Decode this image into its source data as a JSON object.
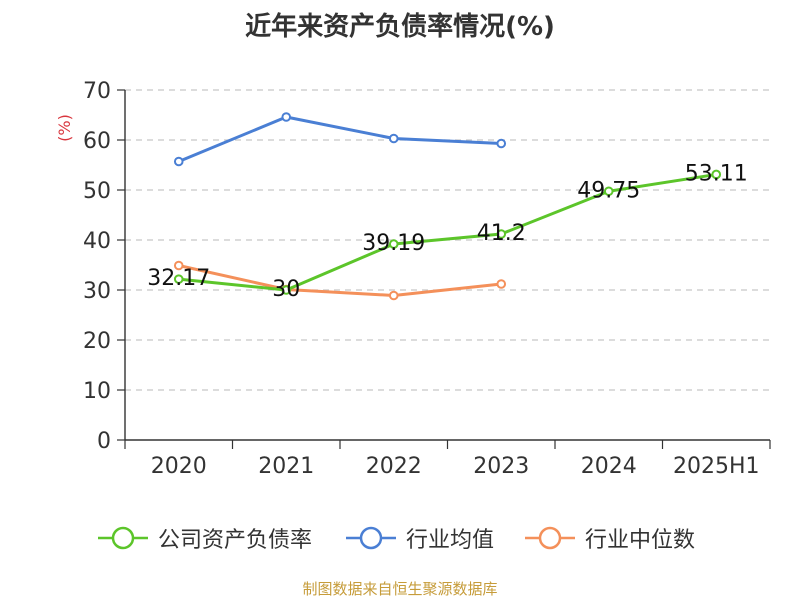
{
  "chart_data": {
    "type": "line",
    "title": "近年来资产负债率情况(%)",
    "ylabel": "(%)",
    "categories": [
      "2020",
      "2021",
      "2022",
      "2023",
      "2024",
      "2025H1"
    ],
    "ylim": [
      0,
      70
    ],
    "yticks": [
      0,
      10,
      20,
      30,
      40,
      50,
      60,
      70
    ],
    "grid": true,
    "legend_position": "bottom",
    "series": [
      {
        "name": "公司资产负债率",
        "color": "#5cc52a",
        "values": [
          32.17,
          30,
          39.19,
          41.2,
          49.75,
          53.11
        ],
        "labels": [
          "32.17",
          "30",
          "39.19",
          "41.2",
          "49.75",
          "53.11"
        ]
      },
      {
        "name": "行业均值",
        "color": "#4a7fd4",
        "values": [
          55.7,
          64.6,
          60.3,
          59.3,
          null,
          null
        ]
      },
      {
        "name": "行业中位数",
        "color": "#f4905a",
        "values": [
          34.9,
          30.1,
          28.9,
          31.2,
          null,
          null
        ]
      }
    ]
  },
  "footer": {
    "source": "制图数据来自恒生聚源数据库"
  }
}
